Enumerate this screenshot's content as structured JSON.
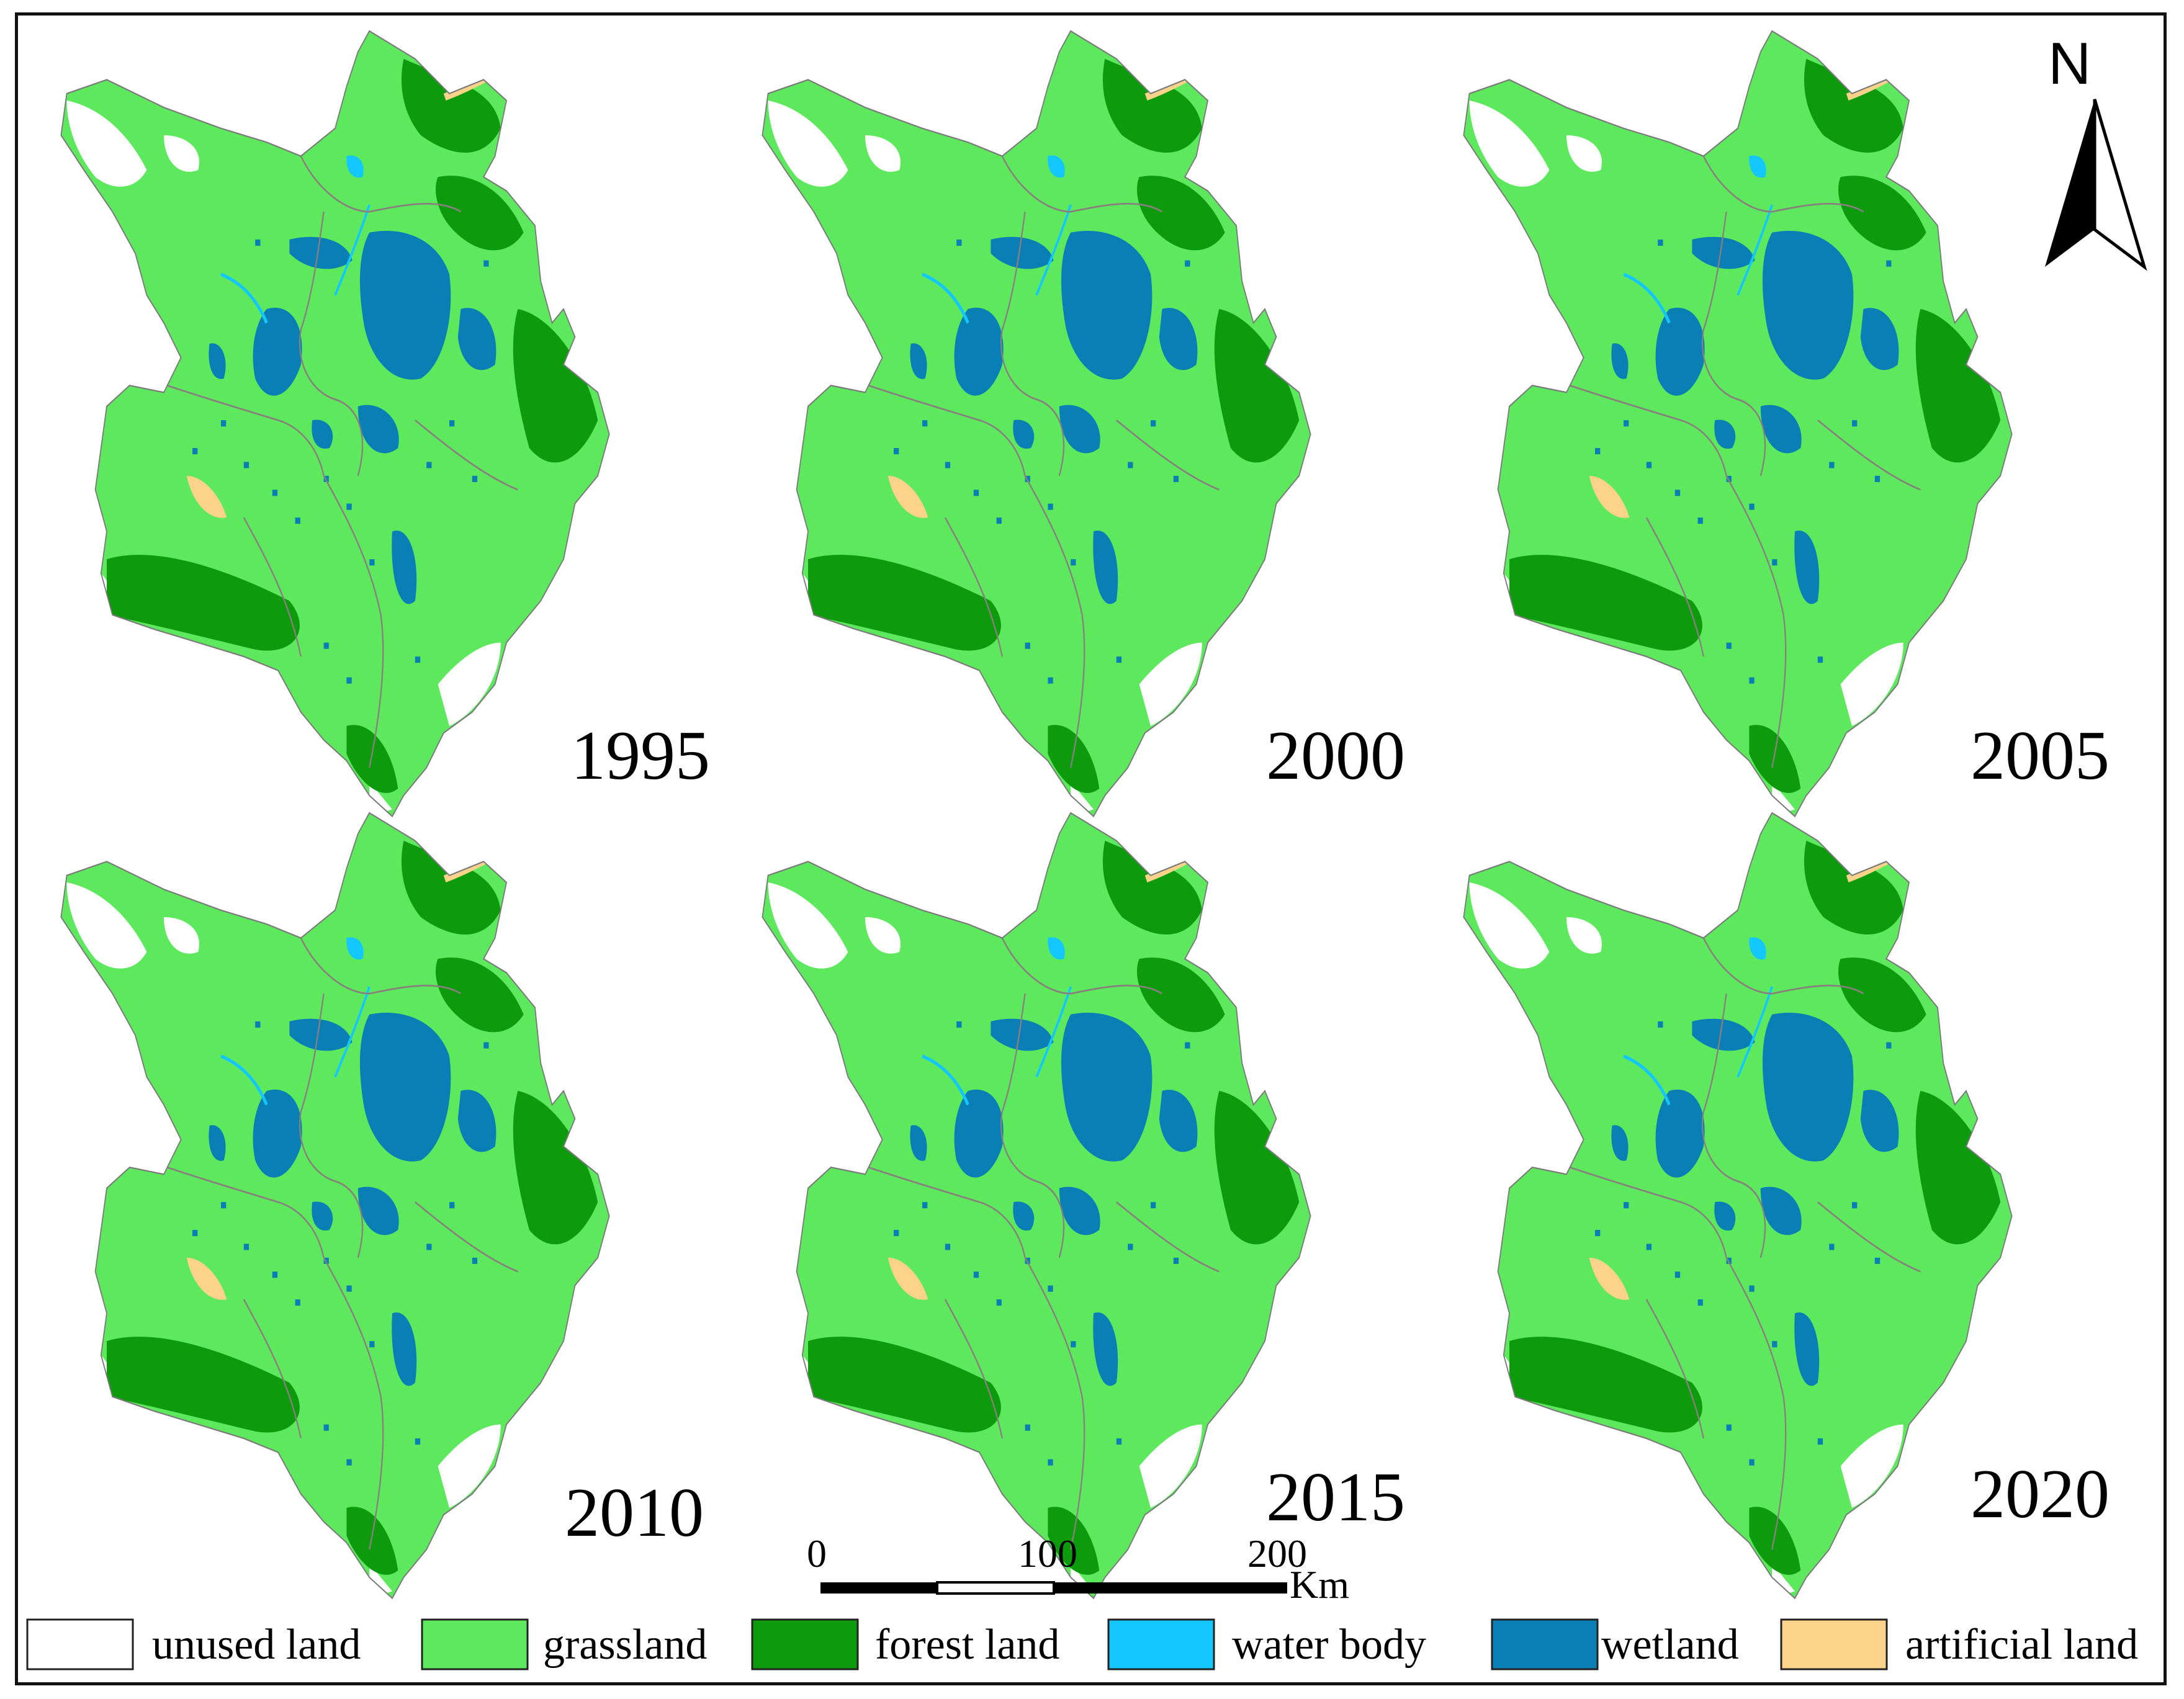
{
  "maps": [
    {
      "year": "1995"
    },
    {
      "year": "2000"
    },
    {
      "year": "2005"
    },
    {
      "year": "2010"
    },
    {
      "year": "2015"
    },
    {
      "year": "2020"
    }
  ],
  "north_arrow": {
    "label": "N"
  },
  "scale_bar": {
    "ticks": [
      "0",
      "100",
      "200"
    ],
    "unit": "Km"
  },
  "legend": [
    {
      "label": "unused land",
      "color": "#ffffff"
    },
    {
      "label": "grassland",
      "color": "#5de85d"
    },
    {
      "label": "forest land",
      "color": "#0d9b0d"
    },
    {
      "label": "water body",
      "color": "#14c8ff"
    },
    {
      "label": "wetland",
      "color": "#0a7fb5"
    },
    {
      "label": "artificial land",
      "color": "#fdd28a"
    }
  ]
}
